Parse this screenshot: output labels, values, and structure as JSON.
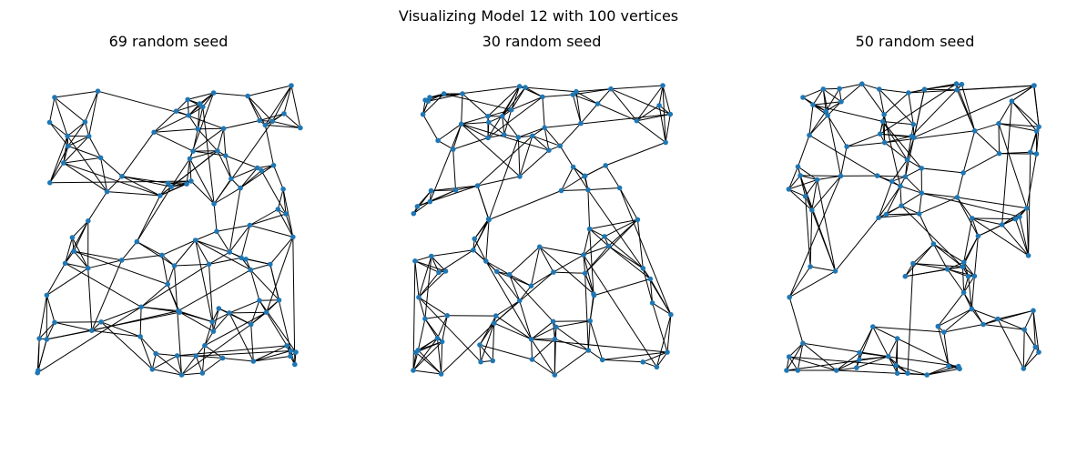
{
  "figure": {
    "title": "Visualizing Model 12 with 100 vertices"
  },
  "colors": {
    "node": "#1f77b4",
    "edge": "#000000"
  },
  "panels": [
    {
      "title": "69 random seed"
    },
    {
      "title": "30 random seed"
    },
    {
      "title": "50 random seed"
    }
  ]
}
